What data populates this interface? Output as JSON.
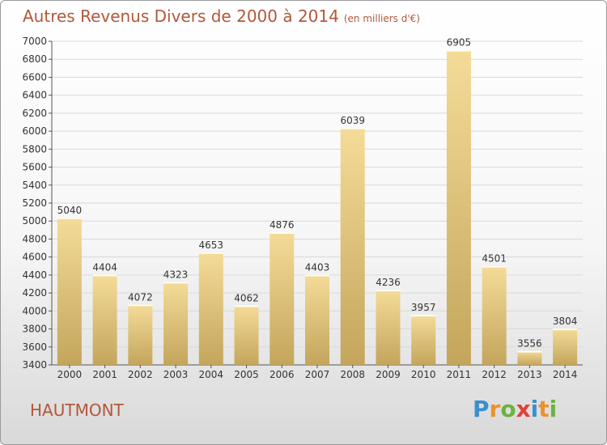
{
  "title": "Autres Revenus Divers de 2000 à 2014",
  "unit": "(en milliers d'€)",
  "place": "HAUTMONT",
  "logo": {
    "letters": [
      {
        "ch": "P",
        "color": "#3a8fd0"
      },
      {
        "ch": "r",
        "color": "#e9932b"
      },
      {
        "ch": "o",
        "color": "#6cb33f"
      },
      {
        "ch": "x",
        "color": "#e2403a"
      },
      {
        "ch": "i",
        "color": "#3a8fd0"
      },
      {
        "ch": "t",
        "color": "#e9932b"
      },
      {
        "ch": "i",
        "color": "#6cb33f"
      }
    ]
  },
  "chart_data": {
    "type": "bar",
    "categories": [
      "2000",
      "2001",
      "2002",
      "2003",
      "2004",
      "2005",
      "2006",
      "2007",
      "2008",
      "2009",
      "2010",
      "2011",
      "2012",
      "2013",
      "2014"
    ],
    "values": [
      5040,
      4404,
      4072,
      4323,
      4653,
      4062,
      4876,
      4403,
      6039,
      4236,
      3957,
      6905,
      4501,
      3556,
      3804
    ],
    "ylim": [
      3400,
      7000
    ],
    "yticks": [
      3400,
      3600,
      3800,
      4000,
      4200,
      4400,
      4600,
      4800,
      5000,
      5200,
      5400,
      5600,
      5800,
      6000,
      6200,
      6400,
      6600,
      6800,
      7000
    ],
    "grid": true,
    "colors": {
      "bar_light": "#f4dc98",
      "bar_dark": "#c4a55c",
      "text": "#b3573a",
      "grid": "#d9d9d9",
      "axis": "#555555"
    }
  }
}
